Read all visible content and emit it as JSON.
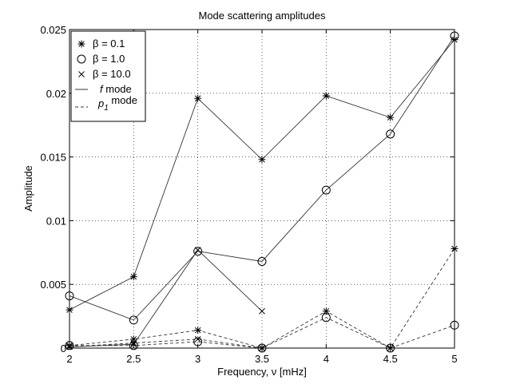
{
  "chart_data": {
    "type": "line",
    "title": "Mode scattering amplitudes",
    "xlabel": "Frequency, ν [mHz]",
    "ylabel": "Amplitude",
    "xlim": [
      2,
      5
    ],
    "ylim": [
      0,
      0.025
    ],
    "x_ticks": [
      2,
      2.5,
      3,
      3.5,
      4,
      4.5,
      5
    ],
    "x_tick_labels": [
      "2",
      "2.5",
      "3",
      "3.5",
      "4",
      "4.5",
      "5"
    ],
    "y_ticks": [
      0,
      0.005,
      0.01,
      0.015,
      0.02,
      0.025
    ],
    "y_tick_labels": [
      "0",
      "0.005",
      "0.01",
      "0.015",
      "0.02",
      "0.025"
    ],
    "grid": true,
    "legend_placement": "top-left",
    "legend": {
      "markers": [
        {
          "marker": "star",
          "label": "β = 0.1"
        },
        {
          "marker": "circle",
          "label": "β = 1.0"
        },
        {
          "marker": "cross",
          "label": "β = 10.0"
        }
      ],
      "lines": [
        {
          "style": "solid",
          "label_italic": "f",
          "label_rest": " mode"
        },
        {
          "style": "dashed",
          "label_italic": "p",
          "label_sub": "1",
          "label_rest": " mode"
        }
      ]
    },
    "series": [
      {
        "beta": "0.1",
        "mode": "f",
        "marker": "star",
        "style": "solid",
        "x": [
          2,
          2.5,
          3,
          3.5,
          4,
          4.5,
          5
        ],
        "y": [
          0.003,
          0.0056,
          0.0196,
          0.0148,
          0.0198,
          0.0181,
          0.0242
        ]
      },
      {
        "beta": "1.0",
        "mode": "f",
        "marker": "circle",
        "style": "solid",
        "x": [
          2,
          2.5,
          3,
          3.5,
          4,
          4.5,
          5
        ],
        "y": [
          0.0041,
          0.0022,
          0.0076,
          0.0068,
          0.0124,
          0.0168,
          0.0245
        ]
      },
      {
        "beta": "10.0",
        "mode": "f",
        "marker": "cross",
        "style": "solid",
        "x": [
          2,
          2.5,
          3,
          3.5
        ],
        "y": [
          0.0001,
          0.0003,
          0.0077,
          0.0029
        ]
      },
      {
        "beta": "0.1",
        "mode": "p1",
        "marker": "star",
        "style": "dashed",
        "x": [
          2,
          2.5,
          3,
          3.5,
          4,
          4.5,
          5
        ],
        "y": [
          0.0002,
          0.0007,
          0.0014,
          0.0,
          0.0029,
          0.0,
          0.0078
        ]
      },
      {
        "beta": "1.0",
        "mode": "p1",
        "marker": "circle",
        "style": "dashed",
        "x": [
          2,
          2.5,
          3,
          3.5,
          4,
          4.5,
          5
        ],
        "y": [
          0.0002,
          0.0002,
          0.0005,
          0.0,
          0.0024,
          0.0,
          0.0018
        ]
      },
      {
        "beta": "10.0",
        "mode": "p1",
        "marker": "cross",
        "style": "dashed",
        "x": [
          2,
          2.5,
          3,
          3.5
        ],
        "y": [
          0.0001,
          0.0004,
          0.0007,
          0.0
        ]
      }
    ]
  }
}
